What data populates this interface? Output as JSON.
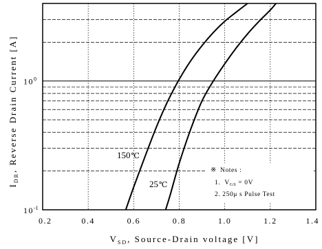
{
  "chart_data": {
    "type": "line",
    "xlabel": "V_SD, Source-Drain voltage [V]",
    "xlabel_main": "V",
    "xlabel_sub": "SD",
    "xlabel_rest": ", Source-Drain voltage [V]",
    "ylabel": "I_DR, Reverse Drain Current [A]",
    "ylabel_main": "I",
    "ylabel_sub": "DR",
    "ylabel_rest": ", Reverse Drain Current [A]",
    "xlim": [
      0.2,
      1.4
    ],
    "ylim": [
      0.1,
      4
    ],
    "yscale": "log",
    "grid": true,
    "x_ticks": [
      "0.2",
      "0.4",
      "0.6",
      "0.8",
      "1.0",
      "1.2",
      "1.4"
    ],
    "y_ticks": [
      {
        "base": "10",
        "exp": "-1",
        "value": 0.1
      },
      {
        "base": "10",
        "exp": "0",
        "value": 1
      }
    ],
    "series": [
      {
        "name": "150℃",
        "label_main": "150",
        "label_unit": "℃",
        "x": [
          0.565,
          0.6,
          0.65,
          0.7,
          0.75,
          0.8,
          0.85,
          0.9,
          0.95,
          1.0,
          1.05,
          1.1
        ],
        "y": [
          0.1,
          0.15,
          0.26,
          0.44,
          0.7,
          1.03,
          1.43,
          1.88,
          2.38,
          2.91,
          3.42,
          4.0
        ]
      },
      {
        "name": "25℃",
        "label_main": "25",
        "label_unit": "℃",
        "x": [
          0.74,
          0.76,
          0.8,
          0.85,
          0.9,
          0.95,
          1.0,
          1.05,
          1.1,
          1.15,
          1.2,
          1.225
        ],
        "y": [
          0.1,
          0.13,
          0.23,
          0.42,
          0.7,
          1.0,
          1.36,
          1.8,
          2.32,
          2.9,
          3.55,
          4.0
        ]
      }
    ],
    "notes": {
      "title": "Notes :",
      "line1_num": "1.",
      "line1_main": "V",
      "line1_sub": "GS",
      "line1_rest": " = 0V",
      "line2": "2.  250μ s Pulse Test"
    }
  }
}
